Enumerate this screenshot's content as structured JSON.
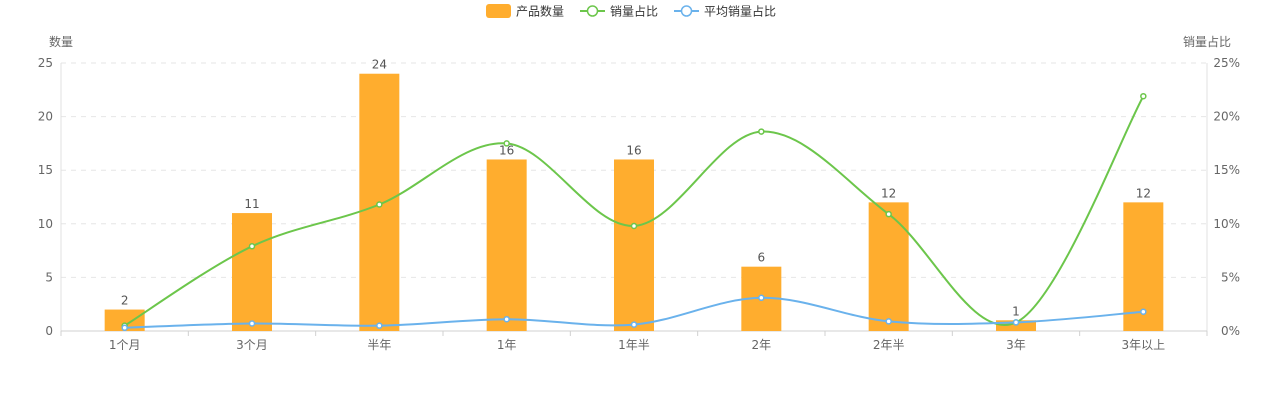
{
  "legend": [
    {
      "label": "产品数量",
      "kind": "bar",
      "color": "#FFAD2E"
    },
    {
      "label": "销量占比",
      "kind": "line",
      "color": "#6CC64B"
    },
    {
      "label": "平均销量占比",
      "kind": "line",
      "color": "#6AB2EC"
    }
  ],
  "chart_data": {
    "type": "bar",
    "categories": [
      "1个月",
      "3个月",
      "半年",
      "1年",
      "1年半",
      "2年",
      "2年半",
      "3年",
      "3年以上"
    ],
    "series": [
      {
        "name": "产品数量",
        "type": "bar",
        "axis": "left",
        "values": [
          2,
          11,
          24,
          16,
          16,
          6,
          12,
          1,
          12
        ],
        "color": "#FFAD2E"
      },
      {
        "name": "销量占比",
        "type": "line",
        "axis": "right",
        "values": [
          0.5,
          7.9,
          11.8,
          17.5,
          9.8,
          18.6,
          10.9,
          0.8,
          21.9
        ],
        "color": "#6CC64B"
      },
      {
        "name": "平均销量占比",
        "type": "line",
        "axis": "right",
        "values": [
          0.3,
          0.7,
          0.5,
          1.1,
          0.6,
          3.1,
          0.9,
          0.8,
          1.8
        ],
        "color": "#6AB2EC"
      }
    ],
    "ylabel_left": "数量",
    "ylabel_right": "销量占比",
    "ylim_left": [
      0,
      25
    ],
    "ylim_right": [
      0,
      25
    ],
    "yticks_left": [
      "0",
      "5",
      "10",
      "15",
      "20",
      "25"
    ],
    "yticks_right": [
      "0%",
      "5%",
      "10%",
      "15%",
      "20%",
      "25%"
    ],
    "grid": true,
    "legend_position": "top-center",
    "data_labels": "bars"
  }
}
